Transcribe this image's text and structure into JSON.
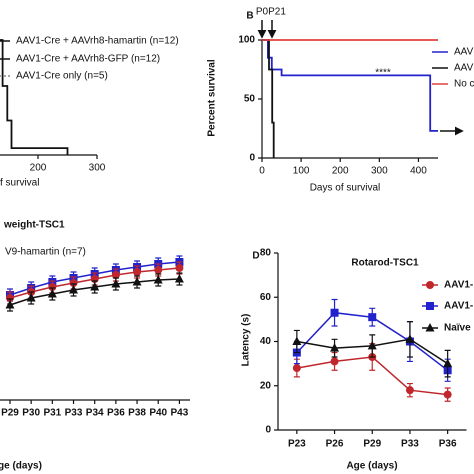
{
  "chart_data": [
    {
      "type": "survival",
      "xlabel": "f survival",
      "xlim": [
        0,
        300
      ],
      "xticks": [
        200,
        300
      ],
      "ylim": [
        0,
        100
      ],
      "legend": [
        {
          "label": "AAV1-Cre + AAVrh8-hamartin (n=12)",
          "color": "#111111"
        },
        {
          "label": "AAV1-Cre + AAVrh8-GFP (n=12)",
          "color": "#111111"
        },
        {
          "label": "AAV1-Cre only (n=5)",
          "color": "#888888"
        }
      ],
      "series": [
        {
          "color": "#111111",
          "x": [
            100,
            140,
            140,
            148,
            148,
            155,
            155,
            250,
            250
          ],
          "values": [
            100,
            100,
            60,
            60,
            30,
            30,
            6,
            6,
            0
          ]
        }
      ]
    },
    {
      "type": "survival",
      "label": "B",
      "ylabel": "Percent survival",
      "xlabel": "Days of survival",
      "xlim": [
        0,
        450
      ],
      "xticks": [
        0,
        100,
        200,
        300,
        400
      ],
      "ylim": [
        0,
        100
      ],
      "yticks": [
        0,
        50,
        100
      ],
      "annotations": [
        "P0",
        "P21",
        "****"
      ],
      "series": [
        {
          "name": "AAV",
          "color": "#2222cc",
          "x": [
            0,
            15,
            15,
            25,
            25,
            50,
            50,
            430,
            430,
            450
          ],
          "values": [
            100,
            100,
            85,
            85,
            75,
            75,
            70,
            70,
            23,
            23
          ]
        },
        {
          "name": "AAV",
          "color": "#111111",
          "x": [
            0,
            18,
            18,
            26,
            26,
            30,
            30
          ],
          "values": [
            100,
            100,
            75,
            75,
            30,
            30,
            0
          ]
        },
        {
          "name": "No c",
          "color": "#e04040",
          "x": [
            0,
            450
          ],
          "values": [
            100,
            100
          ]
        }
      ]
    },
    {
      "type": "line",
      "title": "weight-TSC1",
      "xlabel": "ge (days)",
      "ylim": [
        0,
        30
      ],
      "annotations": [
        "V9-hamartin (n=7)"
      ],
      "categories": [
        "P29",
        "P30",
        "P31",
        "P33",
        "P34",
        "P36",
        "P38",
        "P40",
        "P43"
      ],
      "series": [
        {
          "color": "#2222cc",
          "marker": "square",
          "values": [
            21,
            22.4,
            23.6,
            24.4,
            25.2,
            26,
            26.6,
            27.2,
            27.6
          ],
          "errors": [
            1.2,
            1.2,
            1.2,
            1.2,
            1.2,
            1.2,
            1.2,
            1.2,
            1.2
          ]
        },
        {
          "color": "#c0272d",
          "marker": "circle",
          "values": [
            20.4,
            21.6,
            22.6,
            23.4,
            24.2,
            25,
            25.6,
            26,
            26.4
          ],
          "errors": [
            1.2,
            1.2,
            1.2,
            1.2,
            1.2,
            1.2,
            1.2,
            1.2,
            1.2
          ]
        },
        {
          "color": "#111111",
          "marker": "triangle",
          "values": [
            19,
            20.4,
            21.2,
            22,
            22.6,
            23.2,
            23.6,
            24,
            24.2
          ],
          "errors": [
            1.2,
            1.2,
            1.2,
            1.2,
            1.2,
            1.2,
            1.2,
            1.2,
            1.2
          ]
        }
      ]
    },
    {
      "type": "line",
      "label": "D",
      "title": "Rotarod-TSC1",
      "ylabel": "Latency (s)",
      "xlabel": "Age (days)",
      "ylim": [
        0,
        80
      ],
      "yticks": [
        0,
        20,
        40,
        60,
        80
      ],
      "categories": [
        "P23",
        "P26",
        "P29",
        "P33",
        "P36"
      ],
      "series": [
        {
          "name": "AAV1-",
          "color": "#c0272d",
          "marker": "circle",
          "values": [
            28,
            31,
            33,
            18,
            16
          ],
          "errors": [
            4,
            4,
            6,
            3,
            3
          ]
        },
        {
          "name": "AAV1-",
          "color": "#2222cc",
          "marker": "square",
          "values": [
            35,
            53,
            51,
            40,
            27
          ],
          "errors": [
            5,
            6,
            4,
            9,
            5
          ]
        },
        {
          "name": "Naïve",
          "color": "#111111",
          "marker": "triangle",
          "values": [
            40,
            37,
            38,
            41,
            30
          ],
          "errors": [
            5,
            4,
            5,
            8,
            6
          ]
        }
      ]
    }
  ]
}
